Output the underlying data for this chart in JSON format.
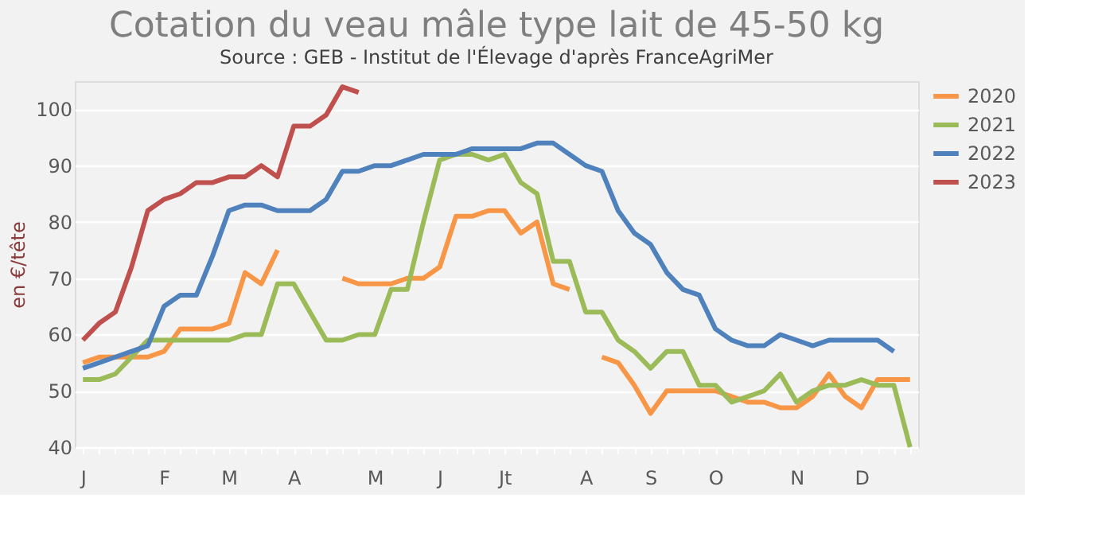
{
  "chart_data": {
    "type": "line",
    "title": "Cotation du veau mâle type lait de 45-50 kg",
    "subtitle": "Source : GEB - Institut de l'Élevage d'après FranceAgriMer",
    "ylabel": "en €/tête",
    "categories": [
      "J",
      null,
      null,
      null,
      null,
      "F",
      null,
      null,
      null,
      "M",
      null,
      null,
      null,
      "A",
      null,
      null,
      null,
      null,
      "M",
      null,
      null,
      null,
      "J",
      null,
      null,
      null,
      "Jt",
      null,
      null,
      null,
      null,
      "A",
      null,
      null,
      null,
      "S",
      null,
      null,
      null,
      "O",
      null,
      null,
      null,
      null,
      "N",
      null,
      null,
      null,
      "D",
      null,
      null,
      null
    ],
    "ylim": [
      40,
      105
    ],
    "yticks": [
      40,
      50,
      60,
      70,
      80,
      90,
      100
    ],
    "grid": "y",
    "legend": "right",
    "marker": "none",
    "line_style": "solid",
    "series": [
      {
        "name": "2020",
        "color": "#f79646",
        "values": [
          55,
          56,
          56,
          56,
          56,
          57,
          61,
          61,
          61,
          62,
          71,
          69,
          75,
          null,
          null,
          null,
          70,
          69,
          69,
          69,
          70,
          70,
          72,
          81,
          81,
          82,
          82,
          78,
          80,
          69,
          68,
          null,
          56,
          55,
          51,
          46,
          50,
          50,
          50,
          50,
          49,
          48,
          48,
          47,
          47,
          49,
          53,
          49,
          47,
          52,
          52,
          52
        ]
      },
      {
        "name": "2021",
        "color": "#9bbb59",
        "values": [
          52,
          52,
          53,
          56,
          59,
          59,
          59,
          59,
          59,
          59,
          60,
          60,
          69,
          69,
          64,
          59,
          59,
          60,
          60,
          68,
          68,
          80,
          91,
          92,
          92,
          91,
          92,
          87,
          85,
          73,
          73,
          64,
          64,
          59,
          57,
          54,
          57,
          57,
          51,
          51,
          48,
          49,
          50,
          53,
          48,
          50,
          51,
          51,
          52,
          51,
          51,
          40
        ]
      },
      {
        "name": "2022",
        "color": "#4f81bd",
        "values": [
          54,
          55,
          56,
          57,
          58,
          65,
          67,
          67,
          74,
          82,
          83,
          83,
          82,
          82,
          82,
          84,
          89,
          89,
          90,
          90,
          91,
          92,
          92,
          92,
          93,
          93,
          93,
          93,
          94,
          94,
          92,
          90,
          89,
          82,
          78,
          76,
          71,
          68,
          67,
          61,
          59,
          58,
          58,
          60,
          59,
          58,
          59,
          59,
          59,
          59,
          57,
          null
        ]
      },
      {
        "name": "2023",
        "color": "#c0504d",
        "values": [
          59,
          62,
          64,
          72,
          82,
          84,
          85,
          87,
          87,
          88,
          88,
          90,
          88,
          97,
          97,
          99,
          104,
          103,
          null,
          null,
          null,
          null,
          null,
          null,
          null,
          null,
          null,
          null,
          null,
          null,
          null,
          null,
          null,
          null,
          null,
          null,
          null,
          null,
          null,
          null,
          null,
          null,
          null,
          null,
          null,
          null,
          null,
          null,
          null,
          null,
          null,
          null
        ]
      }
    ]
  }
}
